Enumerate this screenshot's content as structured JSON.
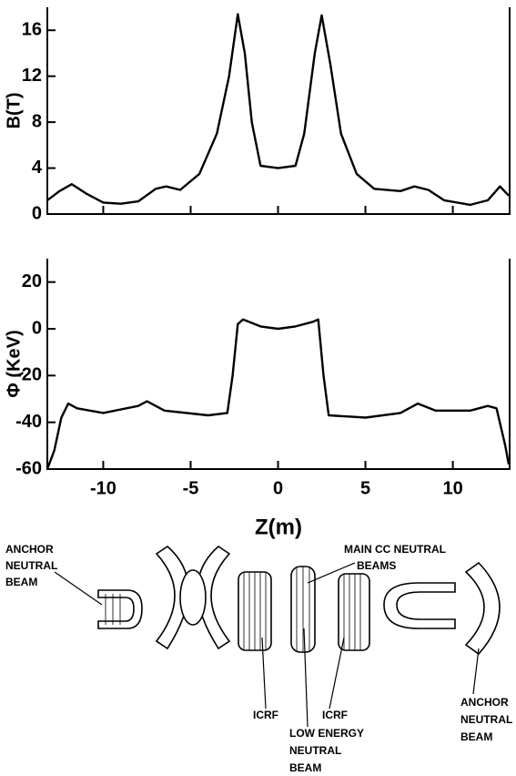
{
  "chart_data": [
    {
      "type": "line",
      "ylabel": "B(T)",
      "color": "#000000",
      "x": [
        -13.2,
        -12.5,
        -11.8,
        -11,
        -10,
        -9,
        -8,
        -7,
        -6.4,
        -5.6,
        -4.5,
        -3.5,
        -2.8,
        -2.3,
        -1.9,
        -1.5,
        -1,
        0,
        1,
        1.5,
        2.1,
        2.5,
        3,
        3.6,
        4.5,
        5.5,
        7,
        7.8,
        8.6,
        9.5,
        11,
        12,
        12.7,
        13.2
      ],
      "values": [
        1.2,
        2.0,
        2.6,
        1.8,
        1.0,
        0.9,
        1.1,
        2.2,
        2.4,
        2.1,
        3.5,
        7,
        12,
        17.4,
        14,
        8,
        4.2,
        4.0,
        4.2,
        7,
        14,
        17.3,
        13,
        7,
        3.5,
        2.2,
        2.0,
        2.4,
        2.1,
        1.2,
        0.8,
        1.2,
        2.4,
        1.6
      ],
      "xlim": [
        -13.2,
        13.25
      ],
      "ylim": [
        0,
        18
      ],
      "yticks": [
        0,
        4,
        8,
        12,
        16
      ]
    },
    {
      "type": "line",
      "ylabel": "Φ (KeV)",
      "xlabel": "Z(m)",
      "color": "#000000",
      "x": [
        -13.2,
        -12.8,
        -12.4,
        -12.0,
        -11.5,
        -10,
        -8,
        -7.5,
        -6.5,
        -4,
        -2.9,
        -2.6,
        -2.3,
        -2.0,
        -1,
        0,
        1,
        2.0,
        2.3,
        2.6,
        2.9,
        5,
        7,
        8,
        9,
        11,
        12,
        12.5,
        13,
        13.2
      ],
      "values": [
        -60,
        -52,
        -38,
        -32,
        -34,
        -36,
        -33,
        -31,
        -35,
        -37,
        -36,
        -20,
        2,
        4,
        1,
        0,
        1,
        3,
        4,
        -20,
        -37,
        -38,
        -36,
        -32,
        -35,
        -35,
        -33,
        -34,
        -50,
        -58
      ],
      "xlim": [
        -13.2,
        13.25
      ],
      "ylim": [
        -60,
        30
      ],
      "yticks": [
        -60,
        -40,
        -20,
        0,
        20
      ],
      "xticks": [
        -10,
        -5,
        0,
        5,
        10
      ]
    }
  ],
  "diagram": {
    "labels": [
      [
        "ANCHOR",
        "NEUTRAL",
        "BEAM"
      ],
      [
        "MAIN  CC NEUTRAL",
        "BEAMS"
      ],
      [
        "ICRF"
      ],
      [
        "ICRF"
      ],
      [
        "LOW ENERGY",
        "NEUTRAL",
        "BEAM"
      ],
      [
        "ANCHOR",
        "NEUTRAL",
        "BEAM"
      ]
    ]
  }
}
